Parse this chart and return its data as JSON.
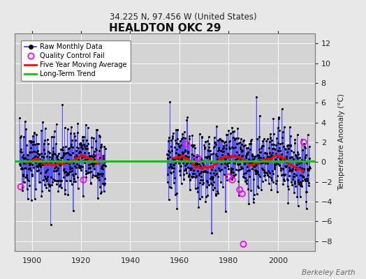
{
  "title": "HEALDTON OKC 29",
  "subtitle": "34.225 N, 97.456 W (United States)",
  "ylabel": "Temperature Anomaly (°C)",
  "watermark": "Berkeley Earth",
  "ylim": [
    -9,
    13
  ],
  "yticks": [
    -8,
    -6,
    -4,
    -2,
    0,
    2,
    4,
    6,
    8,
    10,
    12
  ],
  "xlim": [
    1893,
    2015
  ],
  "xticks": [
    1900,
    1920,
    1940,
    1960,
    1980,
    2000
  ],
  "fig_bg_color": "#e8e8e8",
  "plot_bg_color": "#d4d4d4",
  "grid_color": "#ffffff",
  "line_color": "#4444ff",
  "dot_color": "#000000",
  "moving_avg_color": "#ff0000",
  "trend_color": "#00cc00",
  "qc_fail_color": "#ff00ff",
  "seed": 42,
  "data_start_year": 1895,
  "data_end_year": 2013,
  "gap_start": 1930,
  "gap_end": 1955
}
